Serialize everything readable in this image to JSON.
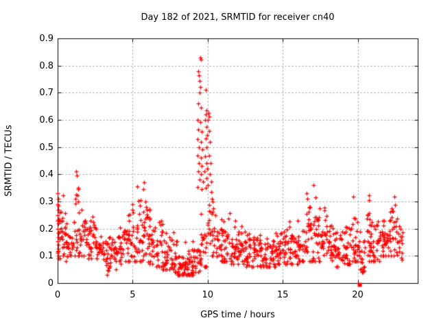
{
  "window": {
    "title": "Day 182 of 2021, SRMTID for receiver cn40"
  },
  "colors": {
    "marker": "#ff0000",
    "grid": "#909090",
    "axis": "#000000",
    "background": "#ffffff",
    "text": "#000000"
  },
  "chart_data": {
    "type": "scatter",
    "title": "Day 182 of 2021, SRMTID for receiver cn40",
    "xlabel": "GPS time / hours",
    "ylabel": "SRMTID / TECUs",
    "xlim": [
      0,
      24
    ],
    "ylim": [
      0,
      0.9
    ],
    "xticks": [
      0,
      5,
      10,
      15,
      20
    ],
    "yticks": [
      0,
      0.1,
      0.2,
      0.3,
      0.4,
      0.5,
      0.6,
      0.7,
      0.8,
      0.9
    ],
    "grid": true,
    "legend_position": "none",
    "marker": "plus",
    "marker_color": "#ff0000",
    "peak": {
      "x": 9.5,
      "y": 0.83
    },
    "data_extent_hours": [
      0,
      23
    ],
    "outlier_square": {
      "x": 20.1,
      "y": 0.0,
      "marker": "filled-square"
    },
    "envelope_buckets": [
      [
        0.0,
        0.5,
        0.09,
        0.35,
        0.18,
        30
      ],
      [
        0.5,
        1.0,
        0.08,
        0.3,
        0.15,
        26
      ],
      [
        1.0,
        1.5,
        0.1,
        0.41,
        0.19,
        26
      ],
      [
        1.5,
        2.0,
        0.1,
        0.28,
        0.17,
        26
      ],
      [
        2.0,
        2.5,
        0.09,
        0.26,
        0.16,
        26
      ],
      [
        2.5,
        3.0,
        0.08,
        0.22,
        0.13,
        24
      ],
      [
        3.0,
        3.5,
        0.03,
        0.17,
        0.1,
        24
      ],
      [
        3.5,
        4.0,
        0.05,
        0.18,
        0.11,
        24
      ],
      [
        4.0,
        4.5,
        0.07,
        0.25,
        0.14,
        26
      ],
      [
        4.5,
        5.0,
        0.08,
        0.3,
        0.15,
        26
      ],
      [
        5.0,
        5.5,
        0.08,
        0.36,
        0.16,
        28
      ],
      [
        5.5,
        6.0,
        0.08,
        0.37,
        0.18,
        30
      ],
      [
        6.0,
        6.5,
        0.07,
        0.3,
        0.14,
        28
      ],
      [
        6.5,
        7.0,
        0.06,
        0.28,
        0.12,
        26
      ],
      [
        7.0,
        7.5,
        0.05,
        0.22,
        0.1,
        26
      ],
      [
        7.5,
        8.0,
        0.04,
        0.22,
        0.09,
        26
      ],
      [
        8.0,
        8.5,
        0.03,
        0.12,
        0.065,
        30
      ],
      [
        8.5,
        9.0,
        0.03,
        0.21,
        0.065,
        30
      ],
      [
        9.0,
        9.5,
        0.04,
        0.2,
        0.08,
        26
      ],
      [
        9.5,
        10.0,
        0.06,
        0.35,
        0.15,
        22
      ],
      [
        10.0,
        10.5,
        0.1,
        0.36,
        0.2,
        22
      ],
      [
        10.5,
        11.0,
        0.08,
        0.3,
        0.15,
        26
      ],
      [
        11.0,
        11.5,
        0.08,
        0.3,
        0.15,
        26
      ],
      [
        11.5,
        12.0,
        0.07,
        0.25,
        0.13,
        26
      ],
      [
        12.0,
        12.5,
        0.07,
        0.22,
        0.12,
        26
      ],
      [
        12.5,
        13.0,
        0.06,
        0.2,
        0.11,
        26
      ],
      [
        13.0,
        13.5,
        0.06,
        0.22,
        0.11,
        26
      ],
      [
        13.5,
        14.0,
        0.06,
        0.18,
        0.1,
        26
      ],
      [
        14.0,
        14.5,
        0.06,
        0.2,
        0.11,
        26
      ],
      [
        14.5,
        15.0,
        0.07,
        0.24,
        0.12,
        26
      ],
      [
        15.0,
        15.5,
        0.07,
        0.25,
        0.13,
        26
      ],
      [
        15.5,
        16.0,
        0.07,
        0.22,
        0.12,
        26
      ],
      [
        16.0,
        16.5,
        0.08,
        0.3,
        0.13,
        26
      ],
      [
        16.5,
        17.0,
        0.08,
        0.33,
        0.16,
        28
      ],
      [
        17.0,
        17.5,
        0.08,
        0.36,
        0.17,
        28
      ],
      [
        17.5,
        18.0,
        0.08,
        0.3,
        0.16,
        26
      ],
      [
        18.0,
        18.5,
        0.07,
        0.25,
        0.13,
        26
      ],
      [
        18.5,
        19.0,
        0.06,
        0.22,
        0.12,
        26
      ],
      [
        19.0,
        19.5,
        0.07,
        0.28,
        0.13,
        26
      ],
      [
        19.5,
        20.0,
        0.08,
        0.33,
        0.15,
        26
      ],
      [
        20.0,
        20.5,
        0.04,
        0.2,
        0.1,
        24
      ],
      [
        20.5,
        21.0,
        0.08,
        0.33,
        0.17,
        26
      ],
      [
        21.0,
        21.5,
        0.08,
        0.25,
        0.14,
        26
      ],
      [
        21.5,
        22.0,
        0.1,
        0.28,
        0.16,
        26
      ],
      [
        22.0,
        22.5,
        0.1,
        0.32,
        0.17,
        26
      ],
      [
        22.5,
        23.0,
        0.08,
        0.25,
        0.15,
        22
      ]
    ],
    "feature_points": [
      [
        9.35,
        0.78
      ],
      [
        9.43,
        0.765
      ],
      [
        9.5,
        0.83
      ],
      [
        9.54,
        0.822
      ],
      [
        9.46,
        0.744
      ],
      [
        9.5,
        0.72
      ],
      [
        9.88,
        0.712
      ],
      [
        9.46,
        0.7
      ],
      [
        9.36,
        0.66
      ],
      [
        9.55,
        0.645
      ],
      [
        9.92,
        0.635
      ],
      [
        9.88,
        0.62
      ],
      [
        9.32,
        0.6
      ],
      [
        9.5,
        0.592
      ],
      [
        9.85,
        0.6
      ],
      [
        10.02,
        0.6
      ],
      [
        10.06,
        0.625
      ],
      [
        10.1,
        0.612
      ],
      [
        9.36,
        0.565
      ],
      [
        9.6,
        0.558
      ],
      [
        9.9,
        0.576
      ],
      [
        10.1,
        0.56
      ],
      [
        9.32,
        0.53
      ],
      [
        9.56,
        0.52
      ],
      [
        9.86,
        0.532
      ],
      [
        9.96,
        0.545
      ],
      [
        10.15,
        0.52
      ],
      [
        9.4,
        0.5
      ],
      [
        9.64,
        0.492
      ],
      [
        9.9,
        0.5
      ],
      [
        10.12,
        0.47
      ],
      [
        9.32,
        0.47
      ],
      [
        9.55,
        0.462
      ],
      [
        9.85,
        0.466
      ],
      [
        9.42,
        0.44
      ],
      [
        9.62,
        0.432
      ],
      [
        9.9,
        0.44
      ],
      [
        10.2,
        0.44
      ],
      [
        9.36,
        0.41
      ],
      [
        9.56,
        0.4
      ],
      [
        9.8,
        0.41
      ],
      [
        9.95,
        0.42
      ],
      [
        10.16,
        0.4
      ],
      [
        9.46,
        0.38
      ],
      [
        9.7,
        0.372
      ],
      [
        9.9,
        0.385
      ],
      [
        10.24,
        0.372
      ],
      [
        9.32,
        0.352
      ],
      [
        9.6,
        0.345
      ],
      [
        9.86,
        0.35
      ],
      [
        10.0,
        0.36
      ],
      [
        10.22,
        0.335
      ],
      [
        10.3,
        0.31
      ],
      [
        10.35,
        0.3
      ],
      [
        0.02,
        0.33
      ],
      [
        0.03,
        0.31
      ],
      [
        0.02,
        0.29
      ],
      [
        0.04,
        0.27
      ],
      [
        0.02,
        0.25
      ],
      [
        0.05,
        0.235
      ],
      [
        0.03,
        0.22
      ],
      [
        0.02,
        0.2
      ],
      [
        0.04,
        0.185
      ],
      [
        0.03,
        0.17
      ],
      [
        0.02,
        0.155
      ],
      [
        0.05,
        0.14
      ],
      [
        0.03,
        0.125
      ],
      [
        0.02,
        0.11
      ],
      [
        0.04,
        0.1
      ],
      [
        1.25,
        0.41
      ],
      [
        1.28,
        0.395
      ],
      [
        5.3,
        0.355
      ],
      [
        5.75,
        0.37
      ],
      [
        5.7,
        0.345
      ],
      [
        17.05,
        0.36
      ],
      [
        16.6,
        0.33
      ],
      [
        19.7,
        0.318
      ],
      [
        20.75,
        0.323
      ],
      [
        22.45,
        0.318
      ],
      [
        3.3,
        0.03
      ],
      [
        3.4,
        0.045
      ],
      [
        8.3,
        0.035
      ],
      [
        8.7,
        0.032
      ],
      [
        20.45,
        0.045
      ]
    ],
    "seed": 42
  }
}
